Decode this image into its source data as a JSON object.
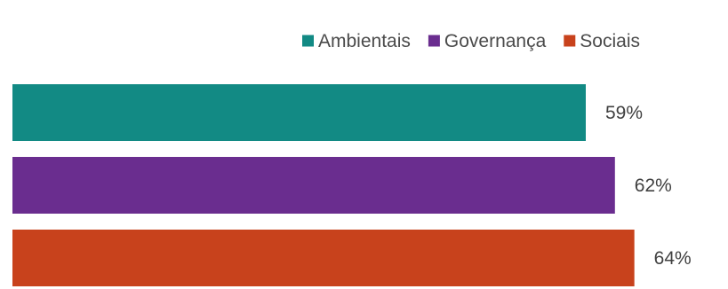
{
  "chart_data": {
    "type": "bar",
    "orientation": "horizontal",
    "series": [
      {
        "name": "Ambientais",
        "value": 59,
        "label": "59%",
        "color": "#128a84"
      },
      {
        "name": "Governança",
        "value": 62,
        "label": "62%",
        "color": "#6a2d8f"
      },
      {
        "name": "Sociais",
        "value": 64,
        "label": "64%",
        "color": "#c8421c"
      }
    ],
    "unit": "%",
    "xlim": [
      0,
      70
    ],
    "legend": "top-right",
    "grid": false,
    "axes_visible": false
  }
}
